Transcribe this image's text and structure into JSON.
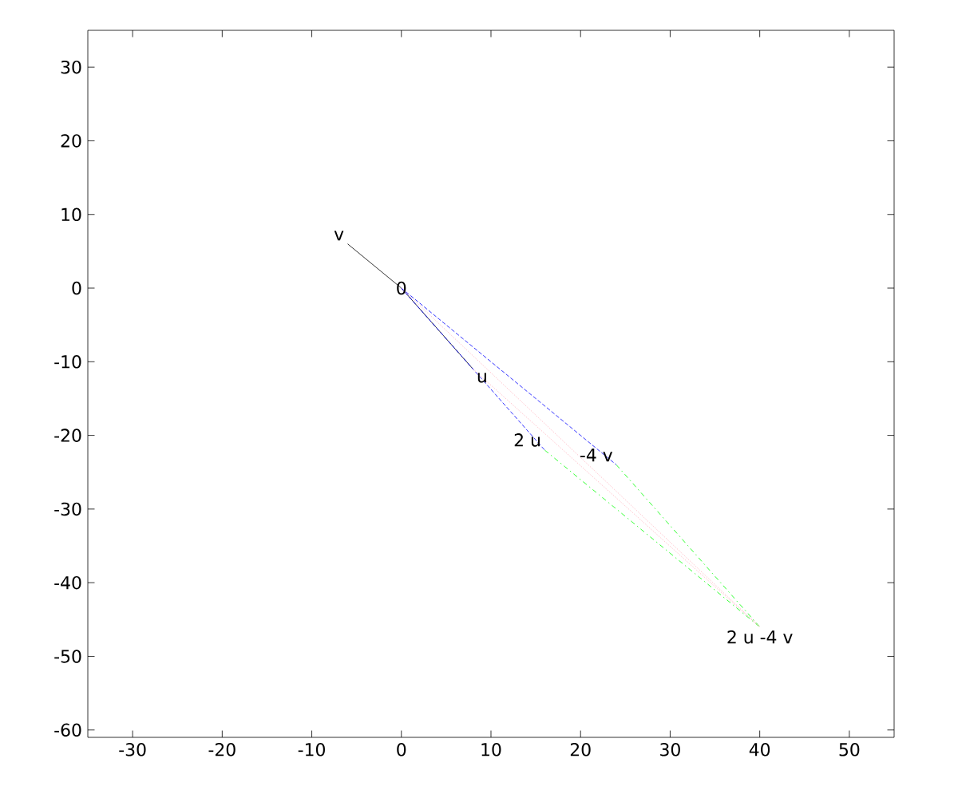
{
  "chart_data": {
    "type": "line",
    "xlim": [
      -35,
      55
    ],
    "ylim": [
      -61,
      35
    ],
    "xticks": [
      -30,
      -20,
      -10,
      0,
      10,
      20,
      30,
      40,
      50
    ],
    "yticks": [
      -60,
      -50,
      -40,
      -30,
      -20,
      -10,
      0,
      10,
      20,
      30
    ],
    "marker": "none",
    "series": [
      {
        "color": "#000000",
        "line_style": "solid",
        "x": [
          -6,
          0,
          8
        ],
        "values": [
          6,
          0,
          -11
        ]
      },
      {
        "color": "#0000ff",
        "line_style": "dashed",
        "x": [
          0,
          16
        ],
        "values": [
          0,
          -22
        ]
      },
      {
        "color": "#0000ff",
        "line_style": "dashed",
        "x": [
          0,
          24
        ],
        "values": [
          0,
          -24
        ]
      },
      {
        "color": "#00ff00",
        "line_style": "dashdot",
        "x": [
          16,
          40
        ],
        "values": [
          -22,
          -46
        ]
      },
      {
        "color": "#00ff00",
        "line_style": "dashdot",
        "x": [
          24,
          40
        ],
        "values": [
          -24,
          -46
        ]
      },
      {
        "color": "#ffb6c1",
        "line_style": "dotted",
        "x": [
          0,
          40
        ],
        "values": [
          0,
          -46
        ]
      },
      {
        "color": "#ffb6c1",
        "line_style": "dotted",
        "x": [
          8,
          40
        ],
        "values": [
          -11,
          -46
        ]
      }
    ],
    "annotations": [
      {
        "text": "0",
        "x": 0,
        "y": 0
      },
      {
        "text": "v",
        "x": -6,
        "y": 6
      },
      {
        "text": "u",
        "x": 8,
        "y": -11
      },
      {
        "text": "2 u",
        "x": 16,
        "y": -22
      },
      {
        "text": "-4 v",
        "x": 24,
        "y": -24
      },
      {
        "text": "2 u -4 v",
        "x": 40,
        "y": -46
      }
    ]
  }
}
